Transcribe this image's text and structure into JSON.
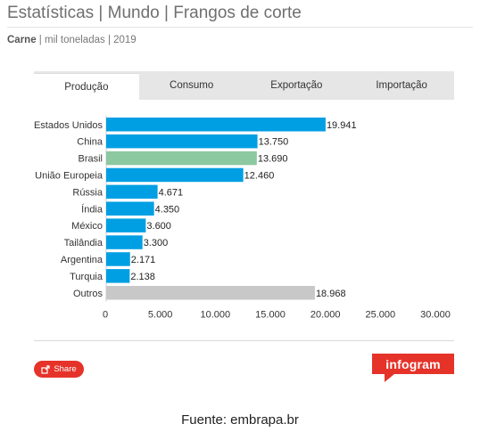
{
  "header": {
    "title": "Estatísticas | Mundo | Frangos de corte",
    "subtitle_bold": "Carne",
    "subtitle_rest": " | mil toneladas | 2019"
  },
  "tabs": [
    {
      "label": "Produção",
      "active": true
    },
    {
      "label": "Consumo",
      "active": false
    },
    {
      "label": "Exportação",
      "active": false
    },
    {
      "label": "Importação",
      "active": false
    }
  ],
  "chart_data": {
    "type": "bar",
    "orientation": "horizontal",
    "categories": [
      "Estados Unidos",
      "China",
      "Brasil",
      "União Europeia",
      "Rússia",
      "Índia",
      "México",
      "Tailândia",
      "Argentina",
      "Turquia",
      "Outros"
    ],
    "values": [
      19941,
      13750,
      13690,
      12460,
      4671,
      4350,
      3600,
      3300,
      2171,
      2138,
      18968
    ],
    "value_labels": [
      "19.941",
      "13.750",
      "13.690",
      "12.460",
      "4.671",
      "4.350",
      "3.600",
      "3.300",
      "2.171",
      "2.138",
      "18.968"
    ],
    "bar_colors": [
      "#009fe3",
      "#009fe3",
      "#8cc8a0",
      "#009fe3",
      "#009fe3",
      "#009fe3",
      "#009fe3",
      "#009fe3",
      "#009fe3",
      "#009fe3",
      "#c8c8c8"
    ],
    "xlim": [
      0,
      30000
    ],
    "xticks": [
      0,
      5000,
      10000,
      15000,
      20000,
      25000,
      30000
    ],
    "xtick_labels": [
      "0",
      "5.000",
      "10.000",
      "15.000",
      "20.000",
      "25.000",
      "30.000"
    ],
    "grid": false
  },
  "footer": {
    "share_label": "Share",
    "logo_text": "infogram",
    "source": "Fuente: embrapa.br"
  },
  "colors": {
    "accent": "#e5332a",
    "bar": "#009fe3",
    "highlight": "#8cc8a0",
    "other": "#c8c8c8"
  }
}
